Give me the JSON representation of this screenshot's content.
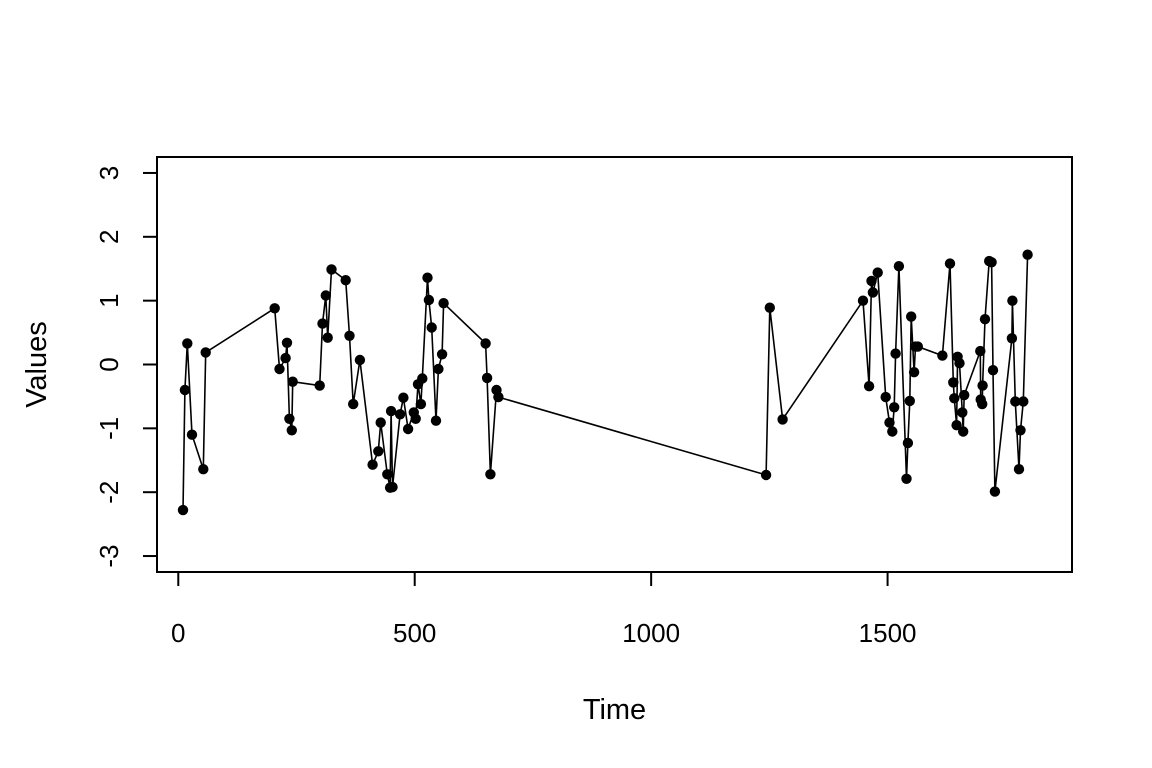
{
  "chart_data": {
    "type": "line",
    "title": "",
    "xlabel": "Time",
    "ylabel": "Values",
    "xlim": [
      -45,
      1890
    ],
    "ylim": [
      -3.25,
      3.25
    ],
    "xticks": [
      0,
      500,
      1000,
      1500
    ],
    "yticks": [
      -3,
      -2,
      -1,
      0,
      1,
      2,
      3
    ],
    "xtick_labels": [
      "0",
      "500",
      "1000",
      "1500"
    ],
    "ytick_labels": [
      "-3",
      "-2",
      "-1",
      "0",
      "1",
      "2",
      "3"
    ],
    "grid": false,
    "legend": "none",
    "markers": true,
    "color": "#000000",
    "series": [
      {
        "x": [
          10,
          14,
          19,
          29,
          53,
          58,
          204,
          214,
          227,
          230,
          235,
          240,
          242,
          299,
          305,
          312,
          316,
          324,
          354,
          362,
          370,
          384,
          411,
          423,
          428,
          442,
          448,
          450,
          453,
          469,
          476,
          486,
          498,
          502,
          507,
          513,
          516,
          527,
          530,
          536,
          545,
          550,
          558,
          561,
          650,
          653,
          660,
          673,
          677,
          1243,
          1251,
          1278,
          1448,
          1461,
          1466,
          1469,
          1479,
          1496,
          1504,
          1510,
          1514,
          1517,
          1524,
          1540,
          1543,
          1547,
          1550,
          1556,
          1559,
          1564,
          1616,
          1632,
          1639,
          1641,
          1646,
          1648,
          1652,
          1658,
          1660,
          1662,
          1696,
          1697,
          1700,
          1701,
          1706,
          1715,
          1720,
          1723,
          1727,
          1763,
          1764,
          1770,
          1778,
          1781,
          1787,
          1796
        ],
        "y": [
          -2.28,
          -0.4,
          0.33,
          -1.1,
          -1.64,
          0.19,
          0.88,
          -0.07,
          0.1,
          0.34,
          -0.85,
          -1.03,
          -0.27,
          -0.33,
          0.64,
          1.08,
          0.42,
          1.49,
          1.32,
          0.45,
          -0.62,
          0.07,
          -1.57,
          -1.36,
          -0.91,
          -1.72,
          -1.93,
          -0.73,
          -1.92,
          -0.78,
          -0.52,
          -1.01,
          -0.75,
          -0.85,
          -0.31,
          -0.62,
          -0.22,
          1.36,
          1.01,
          0.58,
          -0.88,
          -0.07,
          0.16,
          0.96,
          0.33,
          -0.21,
          -1.72,
          -0.4,
          -0.51,
          -1.73,
          0.89,
          -0.86,
          1.0,
          -0.34,
          1.31,
          1.13,
          1.44,
          -0.51,
          -0.91,
          -1.05,
          -0.67,
          0.17,
          1.54,
          -1.79,
          -1.23,
          -0.57,
          0.75,
          -0.12,
          0.28,
          0.28,
          0.14,
          1.58,
          -0.28,
          -0.53,
          -0.95,
          0.12,
          0.02,
          -0.75,
          -1.05,
          -0.48,
          0.21,
          -0.55,
          -0.62,
          -0.33,
          0.71,
          1.62,
          1.6,
          -0.09,
          -1.99,
          0.41,
          1.0,
          -0.58,
          -1.64,
          -1.03,
          -0.58,
          1.72
        ]
      }
    ]
  }
}
